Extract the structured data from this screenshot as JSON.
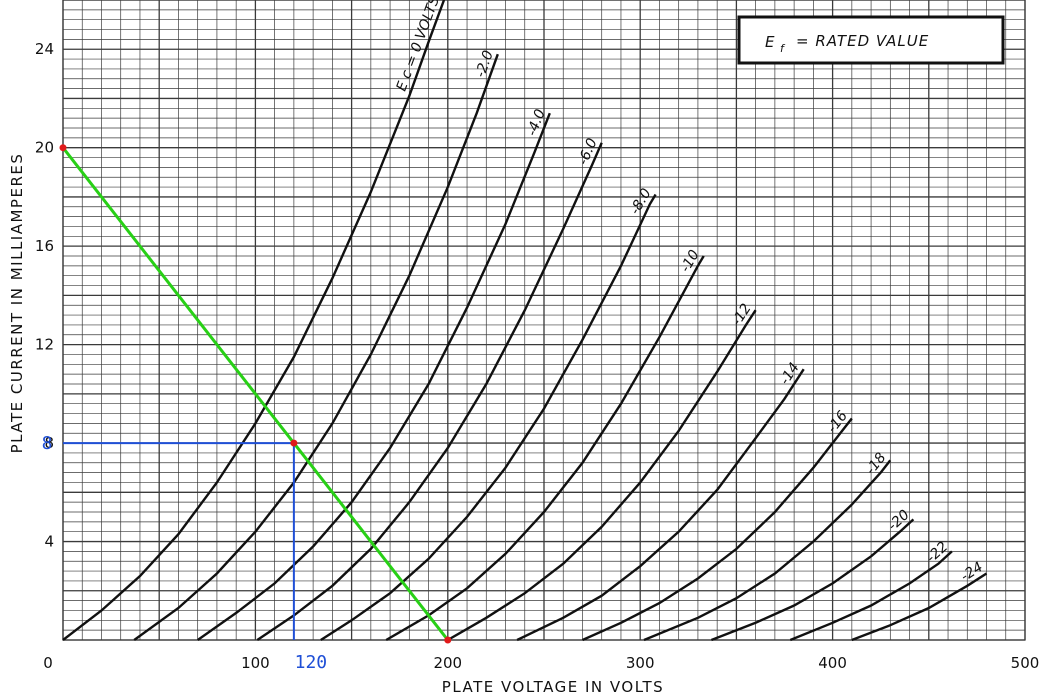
{
  "chart_data": {
    "type": "line",
    "title": "",
    "xlabel": "PLATE VOLTAGE IN VOLTS",
    "ylabel": "PLATE CURRENT IN MILLIAMPERES",
    "xlim": [
      0,
      500
    ],
    "ylim": [
      0,
      26
    ],
    "x_ticks": [
      "0",
      "100",
      "200",
      "300",
      "400",
      "500"
    ],
    "y_ticks": [
      "4",
      "8",
      "12",
      "16",
      "20",
      "24"
    ],
    "grid": true,
    "note": {
      "lhs": "E",
      "sub": "f",
      "rhs": "= RATED VALUE"
    },
    "series": [
      {
        "name": "E c = 0 VOLTS",
        "points": [
          [
            0,
            0
          ],
          [
            20,
            1.2
          ],
          [
            40,
            2.6
          ],
          [
            60,
            4.3
          ],
          [
            80,
            6.4
          ],
          [
            100,
            8.8
          ],
          [
            120,
            11.5
          ],
          [
            140,
            14.7
          ],
          [
            160,
            18.2
          ],
          [
            180,
            22.1
          ],
          [
            190,
            24.3
          ],
          [
            198,
            26
          ]
        ]
      },
      {
        "name": "-2.0",
        "points": [
          [
            37,
            0
          ],
          [
            60,
            1.3
          ],
          [
            80,
            2.7
          ],
          [
            100,
            4.4
          ],
          [
            120,
            6.4
          ],
          [
            140,
            8.8
          ],
          [
            160,
            11.6
          ],
          [
            180,
            14.8
          ],
          [
            200,
            18.4
          ],
          [
            215,
            21.4
          ],
          [
            226,
            23.8
          ]
        ]
      },
      {
        "name": "-4.0",
        "points": [
          [
            70,
            0
          ],
          [
            90,
            1.1
          ],
          [
            110,
            2.3
          ],
          [
            130,
            3.8
          ],
          [
            150,
            5.6
          ],
          [
            170,
            7.8
          ],
          [
            190,
            10.4
          ],
          [
            210,
            13.5
          ],
          [
            230,
            16.9
          ],
          [
            245,
            19.8
          ],
          [
            253,
            21.4
          ]
        ]
      },
      {
        "name": "-6.0",
        "points": [
          [
            101,
            0
          ],
          [
            120,
            1
          ],
          [
            140,
            2.2
          ],
          [
            160,
            3.7
          ],
          [
            180,
            5.6
          ],
          [
            200,
            7.8
          ],
          [
            220,
            10.4
          ],
          [
            240,
            13.4
          ],
          [
            260,
            16.7
          ],
          [
            275,
            19.3
          ],
          [
            280,
            20.2
          ]
        ]
      },
      {
        "name": "-8.0",
        "points": [
          [
            134,
            0
          ],
          [
            150,
            0.8
          ],
          [
            170,
            1.9
          ],
          [
            190,
            3.3
          ],
          [
            210,
            5
          ],
          [
            230,
            7
          ],
          [
            250,
            9.4
          ],
          [
            270,
            12.2
          ],
          [
            290,
            15.2
          ],
          [
            305,
            17.7
          ],
          [
            308,
            18.1
          ]
        ]
      },
      {
        "name": "-10",
        "points": [
          [
            168,
            0
          ],
          [
            190,
            1
          ],
          [
            210,
            2.1
          ],
          [
            230,
            3.5
          ],
          [
            250,
            5.2
          ],
          [
            270,
            7.2
          ],
          [
            290,
            9.6
          ],
          [
            310,
            12.3
          ],
          [
            330,
            15.2
          ],
          [
            333,
            15.6
          ]
        ]
      },
      {
        "name": "-12",
        "points": [
          [
            200,
            0
          ],
          [
            220,
            0.9
          ],
          [
            240,
            1.9
          ],
          [
            260,
            3.1
          ],
          [
            280,
            4.6
          ],
          [
            300,
            6.4
          ],
          [
            320,
            8.5
          ],
          [
            340,
            10.9
          ],
          [
            355,
            12.8
          ],
          [
            360,
            13.4
          ]
        ]
      },
      {
        "name": "-14",
        "points": [
          [
            236,
            0
          ],
          [
            260,
            0.9
          ],
          [
            280,
            1.8
          ],
          [
            300,
            3
          ],
          [
            320,
            4.4
          ],
          [
            340,
            6.1
          ],
          [
            360,
            8.2
          ],
          [
            375,
            9.8
          ],
          [
            385,
            11
          ]
        ]
      },
      {
        "name": "-16",
        "points": [
          [
            270,
            0
          ],
          [
            290,
            0.7
          ],
          [
            310,
            1.5
          ],
          [
            330,
            2.5
          ],
          [
            350,
            3.7
          ],
          [
            370,
            5.2
          ],
          [
            390,
            7
          ],
          [
            405,
            8.5
          ],
          [
            410,
            9
          ]
        ]
      },
      {
        "name": "-18",
        "points": [
          [
            302,
            0
          ],
          [
            330,
            0.9
          ],
          [
            350,
            1.7
          ],
          [
            370,
            2.7
          ],
          [
            390,
            4
          ],
          [
            410,
            5.5
          ],
          [
            425,
            6.8
          ],
          [
            430,
            7.3
          ]
        ]
      },
      {
        "name": "-20",
        "points": [
          [
            337,
            0
          ],
          [
            360,
            0.7
          ],
          [
            380,
            1.4
          ],
          [
            400,
            2.3
          ],
          [
            420,
            3.4
          ],
          [
            435,
            4.4
          ],
          [
            442,
            4.9
          ]
        ]
      },
      {
        "name": "-22",
        "points": [
          [
            378,
            0
          ],
          [
            400,
            0.7
          ],
          [
            420,
            1.4
          ],
          [
            440,
            2.3
          ],
          [
            455,
            3.1
          ],
          [
            462,
            3.6
          ]
        ]
      },
      {
        "name": "-24",
        "points": [
          [
            410,
            0
          ],
          [
            430,
            0.6
          ],
          [
            450,
            1.3
          ],
          [
            470,
            2.2
          ],
          [
            480,
            2.7
          ]
        ]
      }
    ],
    "load_line": {
      "points": [
        [
          0,
          20
        ],
        [
          200,
          0
        ]
      ],
      "color": "#28d016"
    },
    "endpoint_color": "#e11a1a",
    "operating_point": {
      "x": 120,
      "y": 8,
      "x_label": "120",
      "y_label": "8",
      "color": "#1f4fd6"
    }
  }
}
